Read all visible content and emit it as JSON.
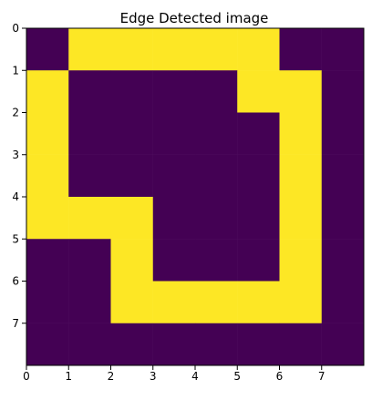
{
  "chart_data": {
    "type": "heatmap",
    "title": "Edge Detected image",
    "xlabel": "",
    "ylabel": "",
    "x_ticks": [
      0,
      1,
      2,
      3,
      4,
      5,
      6,
      7
    ],
    "y_ticks": [
      0,
      1,
      2,
      3,
      4,
      5,
      6,
      7
    ],
    "x_tick_labels": [
      "0",
      "1",
      "2",
      "3",
      "4",
      "5",
      "6",
      "7"
    ],
    "y_tick_labels": [
      "0",
      "1",
      "2",
      "3",
      "4",
      "5",
      "6",
      "7"
    ],
    "xlim": [
      0,
      8
    ],
    "ylim": [
      8,
      0
    ],
    "grid": false,
    "colormap": "viridis",
    "colors": {
      "low": "#440154",
      "high": "#fde725"
    },
    "matrix": [
      [
        0,
        1,
        1,
        1,
        1,
        1,
        0,
        0
      ],
      [
        1,
        0,
        0,
        0,
        0,
        1,
        1,
        0
      ],
      [
        1,
        0,
        0,
        0,
        0,
        0,
        1,
        0
      ],
      [
        1,
        0,
        0,
        0,
        0,
        0,
        1,
        0
      ],
      [
        1,
        1,
        1,
        0,
        0,
        0,
        1,
        0
      ],
      [
        0,
        0,
        1,
        0,
        0,
        0,
        1,
        0
      ],
      [
        0,
        0,
        1,
        1,
        1,
        1,
        1,
        0
      ],
      [
        0,
        0,
        0,
        0,
        0,
        0,
        0,
        0
      ]
    ]
  }
}
